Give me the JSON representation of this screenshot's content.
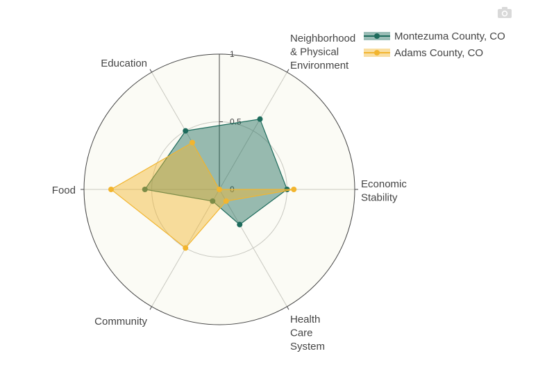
{
  "toolbar": {
    "camera_icon": "camera-icon"
  },
  "chart_data": {
    "type": "radar",
    "title": "",
    "categories": [
      [
        "Economic",
        "Stability"
      ],
      [
        "Neighborhood",
        "& Physical",
        "Environment"
      ],
      [
        "Education"
      ],
      [
        "Food"
      ],
      [
        "Community"
      ],
      [
        "Health",
        "Care",
        "System"
      ]
    ],
    "radial_range": [
      0,
      1
    ],
    "radial_ticks": [
      "0",
      "0.5",
      "1"
    ],
    "series": [
      {
        "name": "Montezuma County, CO",
        "color": "#1d6b5c",
        "values": [
          0.5,
          0.6,
          0.5,
          0.55,
          0.1,
          0.3
        ]
      },
      {
        "name": "Adams County, CO",
        "color": "#f2b52f",
        "values": [
          0.55,
          0.0,
          0.4,
          0.8,
          0.5,
          0.1
        ]
      }
    ],
    "legend_position": "top-right",
    "polar_background": "#fbfbf5"
  }
}
